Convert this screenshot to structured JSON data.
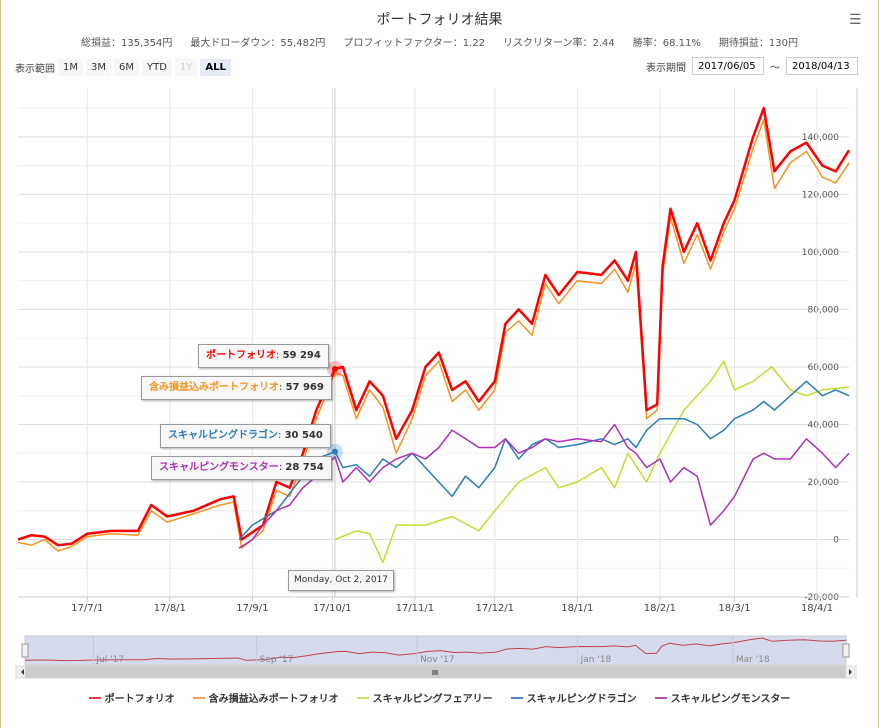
{
  "header": {
    "title": "ポートフォリオ結果",
    "stats": [
      "総損益：135,354円",
      "最大ドローダウン：55,482円",
      "プロフィットファクター：1.22",
      "リスクリターン率：2.44",
      "勝率：68.11%",
      "期待損益：130円"
    ],
    "menu_icon": "hamburger-menu-icon"
  },
  "range_selector": {
    "label": "表示範囲",
    "buttons": [
      "1M",
      "3M",
      "6M",
      "YTD",
      "1Y",
      "ALL"
    ],
    "selected": "ALL",
    "disabled": [
      "1Y"
    ]
  },
  "date_range": {
    "label": "表示期間",
    "from": "2017/06/05",
    "sep": "〜",
    "to": "2018/04/13"
  },
  "tooltip": {
    "date": "Monday, Oct 2, 2017",
    "items": [
      {
        "name": "ポートフォリオ",
        "value": "59 294",
        "color": "#ff0000"
      },
      {
        "name": "含み損益込みポートフォリオ",
        "value": "57 969",
        "color": "#f7931e"
      },
      {
        "name": "スキャルピングドラゴン",
        "value": "30 540",
        "color": "#2b7bba"
      },
      {
        "name": "スキャルピングモンスター",
        "value": "28 754",
        "color": "#b02fb7"
      }
    ]
  },
  "navigator": {
    "labels": [
      "Jul '17",
      "Sep '17",
      "Nov '17",
      "Jan '18",
      "Mar '18"
    ]
  },
  "chart_data": {
    "type": "line",
    "xlim": [
      "2017-06-05",
      "2018-04-13"
    ],
    "ylim": [
      -20000,
      157000
    ],
    "grid": true,
    "legend_placement": "bottom",
    "x_ticks": [
      [
        "2017-07-01",
        "17/7/1"
      ],
      [
        "2017-08-01",
        "17/8/1"
      ],
      [
        "2017-09-01",
        "17/9/1"
      ],
      [
        "2017-10-01",
        "17/10/1"
      ],
      [
        "2017-11-01",
        "17/11/1"
      ],
      [
        "2017-12-01",
        "17/12/1"
      ],
      [
        "2018-01-01",
        "18/1/1"
      ],
      [
        "2018-02-01",
        "18/2/1"
      ],
      [
        "2018-03-01",
        "18/3/1"
      ],
      [
        "2018-04-01",
        "18/4/1"
      ]
    ],
    "y_ticks": [
      [
        -20000,
        "-20,000"
      ],
      [
        0,
        "0"
      ],
      [
        20000,
        "20,000"
      ],
      [
        40000,
        "40,000"
      ],
      [
        60000,
        "60,000"
      ],
      [
        80000,
        "80,000"
      ],
      [
        100000,
        "100,000"
      ],
      [
        120000,
        "120,000"
      ],
      [
        140000,
        "140,000"
      ]
    ],
    "series": [
      {
        "name": "ポートフォリオ",
        "color": "#ff0000",
        "width": 2.5,
        "points": [
          [
            "2017-06-05",
            0
          ],
          [
            "2017-06-10",
            1500
          ],
          [
            "2017-06-15",
            1000
          ],
          [
            "2017-06-20",
            -2000
          ],
          [
            "2017-06-25",
            -1500
          ],
          [
            "2017-07-01",
            2000
          ],
          [
            "2017-07-10",
            3000
          ],
          [
            "2017-07-20",
            3000
          ],
          [
            "2017-07-25",
            12000
          ],
          [
            "2017-07-31",
            8000
          ],
          [
            "2017-08-10",
            10000
          ],
          [
            "2017-08-20",
            14000
          ],
          [
            "2017-08-25",
            15000
          ],
          [
            "2017-08-28",
            0
          ],
          [
            "2017-09-05",
            5000
          ],
          [
            "2017-09-10",
            20000
          ],
          [
            "2017-09-15",
            18000
          ],
          [
            "2017-09-20",
            30000
          ],
          [
            "2017-09-25",
            45000
          ],
          [
            "2017-10-02",
            59294
          ],
          [
            "2017-10-05",
            60000
          ],
          [
            "2017-10-10",
            45000
          ],
          [
            "2017-10-15",
            55000
          ],
          [
            "2017-10-20",
            50000
          ],
          [
            "2017-10-25",
            35000
          ],
          [
            "2017-10-31",
            45000
          ],
          [
            "2017-11-05",
            60000
          ],
          [
            "2017-11-10",
            65000
          ],
          [
            "2017-11-15",
            52000
          ],
          [
            "2017-11-20",
            55000
          ],
          [
            "2017-11-25",
            48000
          ],
          [
            "2017-12-01",
            55000
          ],
          [
            "2017-12-05",
            75000
          ],
          [
            "2017-12-10",
            80000
          ],
          [
            "2017-12-15",
            75000
          ],
          [
            "2017-12-20",
            92000
          ],
          [
            "2017-12-25",
            85000
          ],
          [
            "2018-01-01",
            93000
          ],
          [
            "2018-01-10",
            92000
          ],
          [
            "2018-01-15",
            97000
          ],
          [
            "2018-01-20",
            90000
          ],
          [
            "2018-01-23",
            100000
          ],
          [
            "2018-01-27",
            45000
          ],
          [
            "2018-01-31",
            47000
          ],
          [
            "2018-02-02",
            95000
          ],
          [
            "2018-02-05",
            115000
          ],
          [
            "2018-02-10",
            100000
          ],
          [
            "2018-02-15",
            110000
          ],
          [
            "2018-02-20",
            97000
          ],
          [
            "2018-02-25",
            110000
          ],
          [
            "2018-03-01",
            118000
          ],
          [
            "2018-03-08",
            140000
          ],
          [
            "2018-03-12",
            150000
          ],
          [
            "2018-03-16",
            128000
          ],
          [
            "2018-03-22",
            135000
          ],
          [
            "2018-03-28",
            138000
          ],
          [
            "2018-04-03",
            130000
          ],
          [
            "2018-04-08",
            128000
          ],
          [
            "2018-04-13",
            135354
          ]
        ]
      },
      {
        "name": "含み損益込みポートフォリオ",
        "color": "#f7931e",
        "width": 1.5,
        "points": [
          [
            "2017-06-05",
            -1000
          ],
          [
            "2017-06-10",
            -2000
          ],
          [
            "2017-06-15",
            0
          ],
          [
            "2017-06-20",
            -4000
          ],
          [
            "2017-06-25",
            -2500
          ],
          [
            "2017-07-01",
            1000
          ],
          [
            "2017-07-10",
            2000
          ],
          [
            "2017-07-20",
            1500
          ],
          [
            "2017-07-25",
            10000
          ],
          [
            "2017-07-31",
            6000
          ],
          [
            "2017-08-10",
            9000
          ],
          [
            "2017-08-20",
            12000
          ],
          [
            "2017-08-25",
            13000
          ],
          [
            "2017-08-28",
            -3000
          ],
          [
            "2017-09-05",
            3000
          ],
          [
            "2017-09-10",
            17000
          ],
          [
            "2017-09-15",
            15000
          ],
          [
            "2017-09-20",
            27000
          ],
          [
            "2017-09-25",
            42000
          ],
          [
            "2017-10-02",
            57969
          ],
          [
            "2017-10-05",
            57000
          ],
          [
            "2017-10-10",
            42000
          ],
          [
            "2017-10-15",
            52000
          ],
          [
            "2017-10-20",
            46000
          ],
          [
            "2017-10-25",
            30000
          ],
          [
            "2017-10-31",
            42000
          ],
          [
            "2017-11-05",
            57000
          ],
          [
            "2017-11-10",
            62000
          ],
          [
            "2017-11-15",
            48000
          ],
          [
            "2017-11-20",
            52000
          ],
          [
            "2017-11-25",
            45000
          ],
          [
            "2017-12-01",
            52000
          ],
          [
            "2017-12-05",
            72000
          ],
          [
            "2017-12-10",
            76000
          ],
          [
            "2017-12-15",
            71000
          ],
          [
            "2017-12-20",
            89000
          ],
          [
            "2017-12-25",
            82000
          ],
          [
            "2018-01-01",
            90000
          ],
          [
            "2018-01-10",
            89000
          ],
          [
            "2018-01-15",
            94000
          ],
          [
            "2018-01-20",
            86000
          ],
          [
            "2018-01-23",
            96000
          ],
          [
            "2018-01-27",
            42000
          ],
          [
            "2018-01-31",
            45000
          ],
          [
            "2018-02-02",
            92000
          ],
          [
            "2018-02-05",
            112000
          ],
          [
            "2018-02-10",
            96000
          ],
          [
            "2018-02-15",
            106000
          ],
          [
            "2018-02-20",
            94000
          ],
          [
            "2018-02-25",
            107000
          ],
          [
            "2018-03-01",
            115000
          ],
          [
            "2018-03-08",
            136000
          ],
          [
            "2018-03-12",
            146000
          ],
          [
            "2018-03-16",
            122000
          ],
          [
            "2018-03-22",
            131000
          ],
          [
            "2018-03-28",
            135000
          ],
          [
            "2018-04-03",
            126000
          ],
          [
            "2018-04-08",
            124000
          ],
          [
            "2018-04-13",
            131000
          ]
        ]
      },
      {
        "name": "スキャルピングフェアリー",
        "color": "#c5dc2e",
        "width": 1.5,
        "points": [
          [
            "2017-10-02",
            0
          ],
          [
            "2017-10-10",
            3000
          ],
          [
            "2017-10-15",
            2000
          ],
          [
            "2017-10-20",
            -8000
          ],
          [
            "2017-10-25",
            5000
          ],
          [
            "2017-11-05",
            5000
          ],
          [
            "2017-11-15",
            8000
          ],
          [
            "2017-11-25",
            3000
          ],
          [
            "2017-12-01",
            10000
          ],
          [
            "2017-12-10",
            20000
          ],
          [
            "2017-12-20",
            25000
          ],
          [
            "2017-12-25",
            18000
          ],
          [
            "2018-01-01",
            20000
          ],
          [
            "2018-01-10",
            25000
          ],
          [
            "2018-01-15",
            18000
          ],
          [
            "2018-01-20",
            30000
          ],
          [
            "2018-01-27",
            20000
          ],
          [
            "2018-02-01",
            30000
          ],
          [
            "2018-02-10",
            45000
          ],
          [
            "2018-02-15",
            50000
          ],
          [
            "2018-02-20",
            55000
          ],
          [
            "2018-02-25",
            62000
          ],
          [
            "2018-03-01",
            52000
          ],
          [
            "2018-03-08",
            55000
          ],
          [
            "2018-03-15",
            60000
          ],
          [
            "2018-03-22",
            52000
          ],
          [
            "2018-03-28",
            50000
          ],
          [
            "2018-04-03",
            52000
          ],
          [
            "2018-04-13",
            53000
          ]
        ]
      },
      {
        "name": "スキャルピングドラゴン",
        "color": "#2b7bba",
        "width": 1.5,
        "points": [
          [
            "2017-08-27",
            0
          ],
          [
            "2017-09-01",
            5000
          ],
          [
            "2017-09-10",
            10000
          ],
          [
            "2017-09-20",
            22000
          ],
          [
            "2017-09-25",
            28000
          ],
          [
            "2017-10-02",
            30540
          ],
          [
            "2017-10-05",
            25000
          ],
          [
            "2017-10-10",
            26000
          ],
          [
            "2017-10-15",
            22000
          ],
          [
            "2017-10-20",
            28000
          ],
          [
            "2017-10-25",
            25000
          ],
          [
            "2017-10-31",
            30000
          ],
          [
            "2017-11-05",
            25000
          ],
          [
            "2017-11-10",
            20000
          ],
          [
            "2017-11-15",
            15000
          ],
          [
            "2017-11-20",
            22000
          ],
          [
            "2017-11-25",
            18000
          ],
          [
            "2017-12-01",
            25000
          ],
          [
            "2017-12-05",
            35000
          ],
          [
            "2017-12-10",
            28000
          ],
          [
            "2017-12-15",
            33000
          ],
          [
            "2017-12-20",
            35000
          ],
          [
            "2017-12-25",
            32000
          ],
          [
            "2018-01-01",
            33000
          ],
          [
            "2018-01-10",
            35000
          ],
          [
            "2018-01-15",
            33000
          ],
          [
            "2018-01-20",
            35000
          ],
          [
            "2018-01-23",
            32000
          ],
          [
            "2018-01-27",
            38000
          ],
          [
            "2018-02-01",
            42000
          ],
          [
            "2018-02-10",
            42000
          ],
          [
            "2018-02-15",
            40000
          ],
          [
            "2018-02-20",
            35000
          ],
          [
            "2018-02-25",
            38000
          ],
          [
            "2018-03-01",
            42000
          ],
          [
            "2018-03-08",
            45000
          ],
          [
            "2018-03-12",
            48000
          ],
          [
            "2018-03-16",
            45000
          ],
          [
            "2018-03-22",
            50000
          ],
          [
            "2018-03-28",
            55000
          ],
          [
            "2018-04-03",
            50000
          ],
          [
            "2018-04-08",
            52000
          ],
          [
            "2018-04-13",
            50000
          ]
        ]
      },
      {
        "name": "スキャルピングモンスター",
        "color": "#b02fb7",
        "width": 1.5,
        "points": [
          [
            "2017-08-27",
            -3000
          ],
          [
            "2017-09-01",
            0
          ],
          [
            "2017-09-05",
            5000
          ],
          [
            "2017-09-10",
            10000
          ],
          [
            "2017-09-15",
            12000
          ],
          [
            "2017-09-20",
            18000
          ],
          [
            "2017-09-25",
            22000
          ],
          [
            "2017-10-02",
            28754
          ],
          [
            "2017-10-05",
            20000
          ],
          [
            "2017-10-10",
            25000
          ],
          [
            "2017-10-15",
            20000
          ],
          [
            "2017-10-20",
            25000
          ],
          [
            "2017-10-25",
            28000
          ],
          [
            "2017-10-31",
            30000
          ],
          [
            "2017-11-05",
            28000
          ],
          [
            "2017-11-10",
            32000
          ],
          [
            "2017-11-15",
            38000
          ],
          [
            "2017-11-20",
            35000
          ],
          [
            "2017-11-25",
            32000
          ],
          [
            "2017-12-01",
            32000
          ],
          [
            "2017-12-05",
            35000
          ],
          [
            "2017-12-10",
            30000
          ],
          [
            "2017-12-15",
            32000
          ],
          [
            "2017-12-20",
            35000
          ],
          [
            "2017-12-25",
            34000
          ],
          [
            "2018-01-01",
            35000
          ],
          [
            "2018-01-10",
            34000
          ],
          [
            "2018-01-15",
            40000
          ],
          [
            "2018-01-20",
            32000
          ],
          [
            "2018-01-23",
            30000
          ],
          [
            "2018-01-27",
            25000
          ],
          [
            "2018-02-01",
            28000
          ],
          [
            "2018-02-05",
            20000
          ],
          [
            "2018-02-10",
            25000
          ],
          [
            "2018-02-15",
            22000
          ],
          [
            "2018-02-20",
            5000
          ],
          [
            "2018-02-25",
            10000
          ],
          [
            "2018-03-01",
            15000
          ],
          [
            "2018-03-08",
            28000
          ],
          [
            "2018-03-12",
            30000
          ],
          [
            "2018-03-16",
            28000
          ],
          [
            "2018-03-22",
            28000
          ],
          [
            "2018-03-28",
            35000
          ],
          [
            "2018-04-03",
            30000
          ],
          [
            "2018-04-08",
            25000
          ],
          [
            "2018-04-13",
            30000
          ]
        ]
      }
    ]
  }
}
